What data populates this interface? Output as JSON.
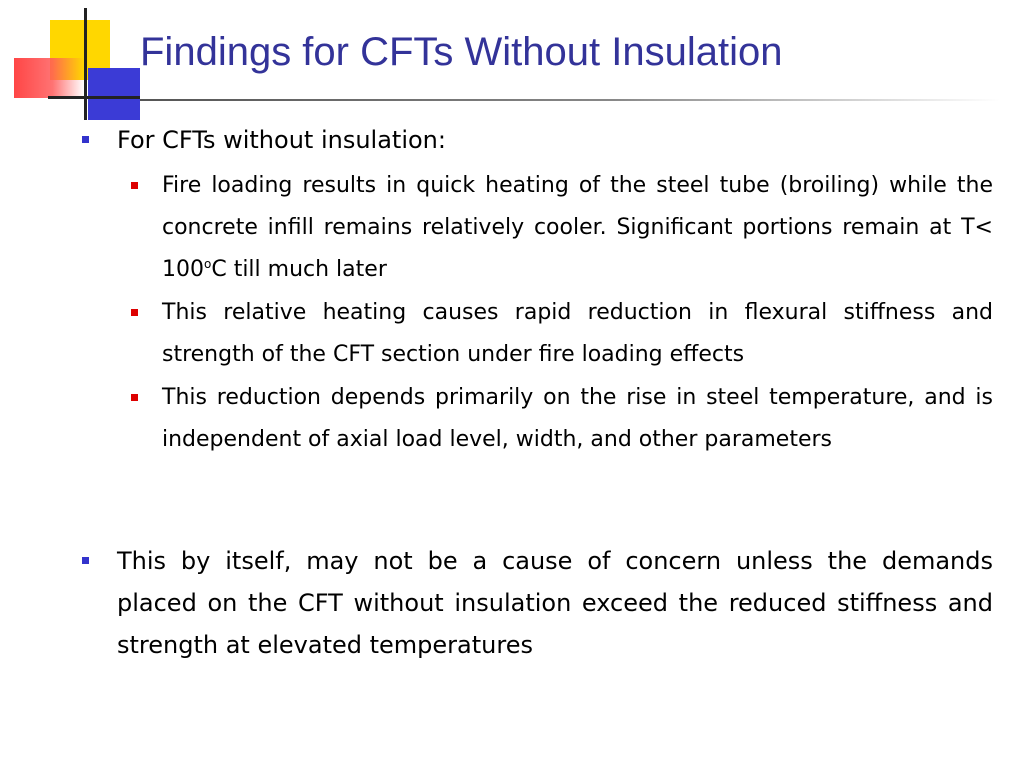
{
  "slide": {
    "title": "Findings for CFTs Without Insulation",
    "bullets": [
      {
        "text": "For CFTs without insulation:"
      },
      {
        "text": "This by itself, may not be a cause of concern unless the demands placed on the CFT without insulation exceed the reduced stiffness and strength at elevated temperatures"
      }
    ],
    "sub_bullets": [
      {
        "text_before": "Fire loading results in quick heating of the steel tube (broiling) while the concrete infill remains relatively cooler. Significant portions remain at T< 100",
        "superscript": "o",
        "text_after": "C till much later"
      },
      {
        "text": "This relative heating causes rapid reduction in flexural stiffness and strength of the CFT section under fire loading effects"
      },
      {
        "text": "This reduction depends primarily on the rise in steel temperature, and is independent of axial load level, width, and other parameters"
      }
    ]
  },
  "colors": {
    "title": "#333399",
    "bullet_l1": "#3333cc",
    "bullet_l2": "#dd0000",
    "deco_yellow": "#FFD700",
    "deco_blue": "#3b3bd6",
    "deco_red": "#ff3c3c"
  }
}
